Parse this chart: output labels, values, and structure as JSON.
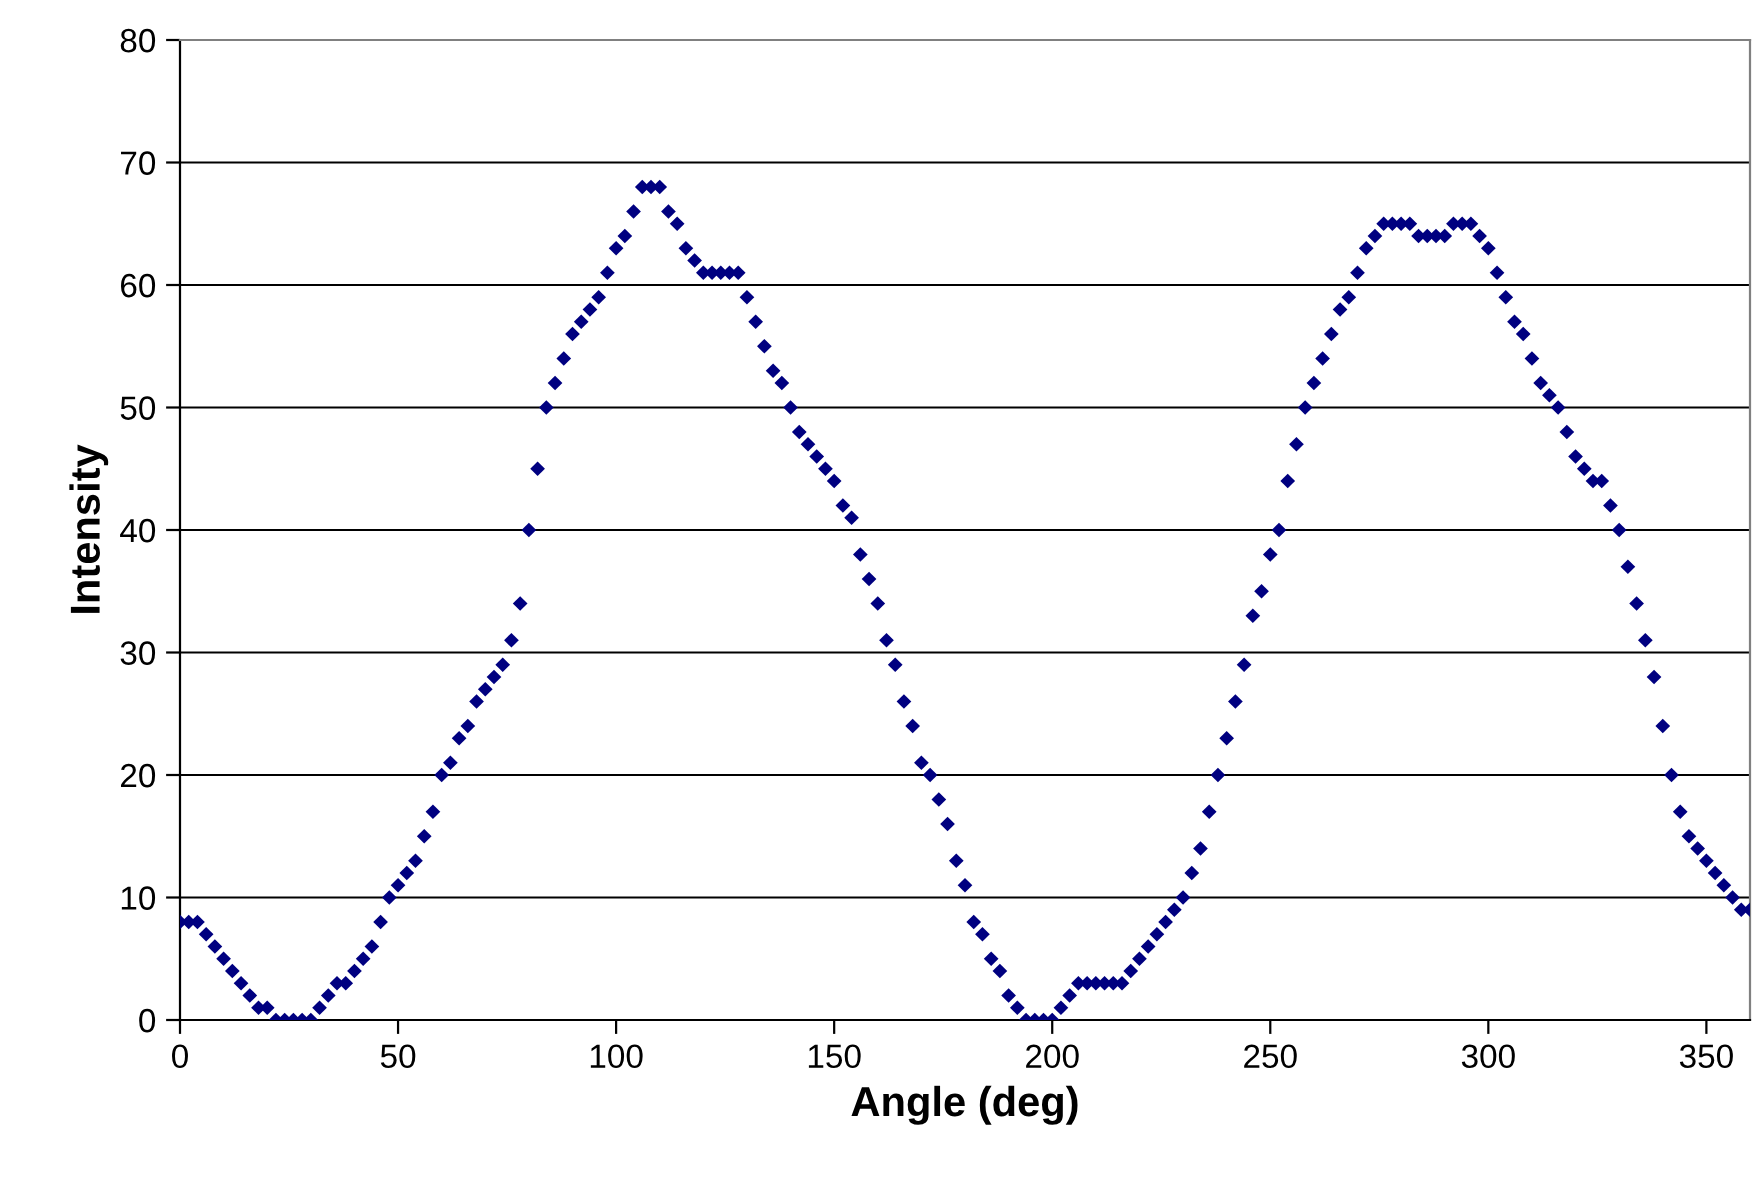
{
  "chart_data": {
    "type": "scatter",
    "xlabel": "Angle (deg)",
    "ylabel": "Intensity",
    "x": [
      0,
      2,
      4,
      6,
      8,
      10,
      12,
      14,
      16,
      18,
      20,
      22,
      24,
      26,
      28,
      30,
      32,
      34,
      36,
      38,
      40,
      42,
      44,
      46,
      48,
      50,
      52,
      54,
      56,
      58,
      60,
      62,
      64,
      66,
      68,
      70,
      72,
      74,
      76,
      78,
      80,
      82,
      84,
      86,
      88,
      90,
      92,
      94,
      96,
      98,
      100,
      102,
      104,
      106,
      108,
      110,
      112,
      114,
      116,
      118,
      120,
      122,
      124,
      126,
      128,
      130,
      132,
      134,
      136,
      138,
      140,
      142,
      144,
      146,
      148,
      150,
      152,
      154,
      156,
      158,
      160,
      162,
      164,
      166,
      168,
      170,
      172,
      174,
      176,
      178,
      180,
      182,
      184,
      186,
      188,
      190,
      192,
      194,
      196,
      198,
      200,
      202,
      204,
      206,
      208,
      210,
      212,
      214,
      216,
      218,
      220,
      222,
      224,
      226,
      228,
      230,
      232,
      234,
      236,
      238,
      240,
      242,
      244,
      246,
      248,
      250,
      252,
      254,
      256,
      258,
      260,
      262,
      264,
      266,
      268,
      270,
      272,
      274,
      276,
      278,
      280,
      282,
      284,
      286,
      288,
      290,
      292,
      294,
      296,
      298,
      300,
      302,
      304,
      306,
      308,
      310,
      312,
      314,
      316,
      318,
      320,
      322,
      324,
      326,
      328,
      330,
      332,
      334,
      336,
      338,
      340,
      342,
      344,
      346,
      348,
      350,
      352,
      354,
      356,
      358,
      360
    ],
    "series": [
      {
        "color": "#000080",
        "values": [
          8,
          8,
          8,
          7,
          6,
          5,
          4,
          3,
          2,
          1,
          1,
          0,
          0,
          0,
          0,
          0,
          1,
          2,
          3,
          3,
          4,
          5,
          6,
          8,
          10,
          11,
          12,
          13,
          15,
          17,
          20,
          21,
          23,
          24,
          26,
          27,
          28,
          29,
          31,
          34,
          40,
          45,
          50,
          52,
          54,
          56,
          57,
          58,
          59,
          61,
          63,
          64,
          66,
          68,
          68,
          68,
          66,
          65,
          63,
          62,
          61,
          61,
          61,
          61,
          61,
          59,
          57,
          55,
          53,
          52,
          50,
          48,
          47,
          46,
          45,
          44,
          42,
          41,
          38,
          36,
          34,
          31,
          29,
          26,
          24,
          21,
          20,
          18,
          16,
          13,
          11,
          8,
          7,
          5,
          4,
          2,
          1,
          0,
          0,
          0,
          0,
          1,
          2,
          3,
          3,
          3,
          3,
          3,
          3,
          4,
          5,
          6,
          7,
          8,
          9,
          10,
          12,
          14,
          17,
          20,
          23,
          26,
          29,
          33,
          35,
          38,
          40,
          44,
          47,
          50,
          52,
          54,
          56,
          58,
          59,
          61,
          63,
          64,
          65,
          65,
          65,
          65,
          64,
          64,
          64,
          64,
          65,
          65,
          65,
          64,
          63,
          61,
          59,
          57,
          56,
          54,
          52,
          51,
          50,
          48,
          46,
          45,
          44,
          44,
          42,
          40,
          37,
          34,
          31,
          28,
          24,
          20,
          17,
          15,
          14,
          13,
          12,
          11,
          10,
          9,
          9
        ]
      }
    ],
    "marker": "diamond",
    "xlim": [
      0,
      360
    ],
    "ylim": [
      0,
      80
    ],
    "xticks": [
      0,
      50,
      100,
      150,
      200,
      250,
      300,
      350
    ],
    "yticks": [
      0,
      10,
      20,
      30,
      40,
      50,
      60,
      70,
      80
    ],
    "grid": "y"
  }
}
